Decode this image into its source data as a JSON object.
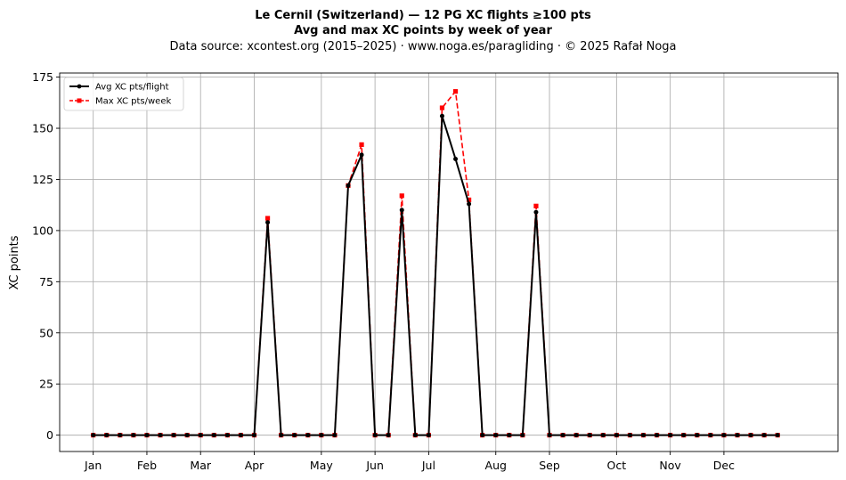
{
  "chart_data": {
    "type": "line",
    "title": "Le Cernil (Switzerland)  —  12 PG XC flights ≥100 pts",
    "subtitle": "Avg and max XC points by week of year",
    "source_line": "Data source: xcontest.org (2015–2025)  ·  www.noga.es/paragliding  ·  © 2025 Rafał Noga",
    "xlabel": "",
    "ylabel": "XC points",
    "xlim": [
      -2.5,
      55.5
    ],
    "ylim": [
      -8,
      177
    ],
    "yticks": [
      0,
      25,
      50,
      75,
      100,
      125,
      150,
      175
    ],
    "xticks": [
      {
        "label": "Jan",
        "week": 0
      },
      {
        "label": "Feb",
        "week": 4
      },
      {
        "label": "Mar",
        "week": 8
      },
      {
        "label": "Apr",
        "week": 12
      },
      {
        "label": "May",
        "week": 17
      },
      {
        "label": "Jun",
        "week": 21
      },
      {
        "label": "Jul",
        "week": 25
      },
      {
        "label": "Aug",
        "week": 30
      },
      {
        "label": "Sep",
        "week": 34
      },
      {
        "label": "Oct",
        "week": 39
      },
      {
        "label": "Nov",
        "week": 43
      },
      {
        "label": "Dec",
        "week": 47
      }
    ],
    "grid": true,
    "legend_position": "top-left",
    "x": [
      0,
      1,
      2,
      3,
      4,
      5,
      6,
      7,
      8,
      9,
      10,
      11,
      12,
      13,
      14,
      15,
      16,
      17,
      18,
      19,
      20,
      21,
      22,
      23,
      24,
      25,
      26,
      27,
      28,
      29,
      30,
      31,
      32,
      33,
      34,
      35,
      36,
      37,
      38,
      39,
      40,
      41,
      42,
      43,
      44,
      45,
      46,
      47,
      48,
      49,
      50,
      51
    ],
    "series": [
      {
        "name": "Avg XC pts/flight",
        "color": "#000000",
        "style": "solid",
        "marker": "circle",
        "values": [
          0,
          0,
          0,
          0,
          0,
          0,
          0,
          0,
          0,
          0,
          0,
          0,
          0,
          104,
          0,
          0,
          0,
          0,
          0,
          122,
          137,
          0,
          0,
          110,
          0,
          0,
          156,
          135,
          113,
          0,
          0,
          0,
          0,
          109,
          0,
          0,
          0,
          0,
          0,
          0,
          0,
          0,
          0,
          0,
          0,
          0,
          0,
          0,
          0,
          0,
          0,
          0
        ]
      },
      {
        "name": "Max XC pts/week",
        "color": "#ff0000",
        "style": "dashed",
        "marker": "square",
        "values": [
          0,
          0,
          0,
          0,
          0,
          0,
          0,
          0,
          0,
          0,
          0,
          0,
          0,
          106,
          0,
          0,
          0,
          0,
          0,
          122,
          142,
          0,
          0,
          117,
          0,
          0,
          160,
          168,
          115,
          0,
          0,
          0,
          0,
          112,
          0,
          0,
          0,
          0,
          0,
          0,
          0,
          0,
          0,
          0,
          0,
          0,
          0,
          0,
          0,
          0,
          0,
          0
        ]
      }
    ]
  }
}
